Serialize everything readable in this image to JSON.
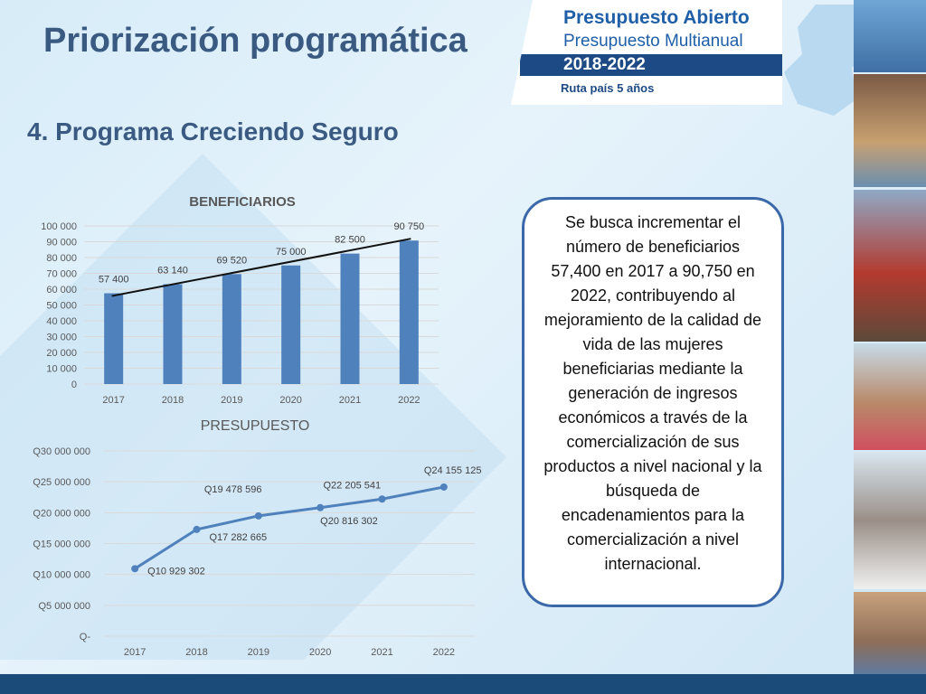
{
  "header": {
    "title": "Priorización programática",
    "subtitle": "4. Programa Creciendo Seguro"
  },
  "brand": {
    "line1": "Presupuesto Abierto",
    "line2": "Presupuesto Multianual",
    "line3": "2018-2022",
    "line4": "Ruta país 5 años"
  },
  "description": "Se busca incrementar el número de beneficiarios 57,400 en 2017 a 90,750 en 2022, contribuyendo al mejoramiento de la calidad de vida de las mujeres beneficiarias mediante la generación de ingresos económicos  a través de la comercialización de sus productos a nivel nacional y la búsqueda de encadenamientos para la comercialización a nivel internacional.",
  "colors": {
    "series": "#4f81bd",
    "title": "#3a5a82",
    "border": "#3a68a8",
    "footer": "#1b4b78"
  },
  "chart_data": [
    {
      "type": "bar",
      "title": "BENEFICIARIOS",
      "categories": [
        "2017",
        "2018",
        "2019",
        "2020",
        "2021",
        "2022"
      ],
      "values": [
        57400,
        63140,
        69520,
        75000,
        82500,
        90750
      ],
      "value_labels": [
        "57 400",
        "63 140",
        "69 520",
        "75 000",
        "82 500",
        "90 750"
      ],
      "ylim": [
        0,
        100000
      ],
      "yticks": [
        "0",
        "10 000",
        "20 000",
        "30 000",
        "40 000",
        "50 000",
        "60 000",
        "70 000",
        "80 000",
        "90 000",
        "100 000"
      ],
      "trendline": true,
      "grid": true
    },
    {
      "type": "line",
      "title": "PRESUPUESTO",
      "categories": [
        "2017",
        "2018",
        "2019",
        "2020",
        "2021",
        "2022"
      ],
      "values": [
        10929302,
        17282665,
        19478596,
        20816302,
        22205541,
        24155125
      ],
      "value_labels": [
        "Q10 929 302",
        "Q17 282 665",
        "Q19 478 596",
        "Q20 816 302",
        "Q22 205 541",
        "Q24 155 125"
      ],
      "ylim": [
        0,
        30000000
      ],
      "yticks": [
        "Q-",
        "Q5 000 000",
        "Q10 000 000",
        "Q15 000 000",
        "Q20 000 000",
        "Q25 000 000",
        "Q30 000 000"
      ],
      "grid": true
    }
  ]
}
